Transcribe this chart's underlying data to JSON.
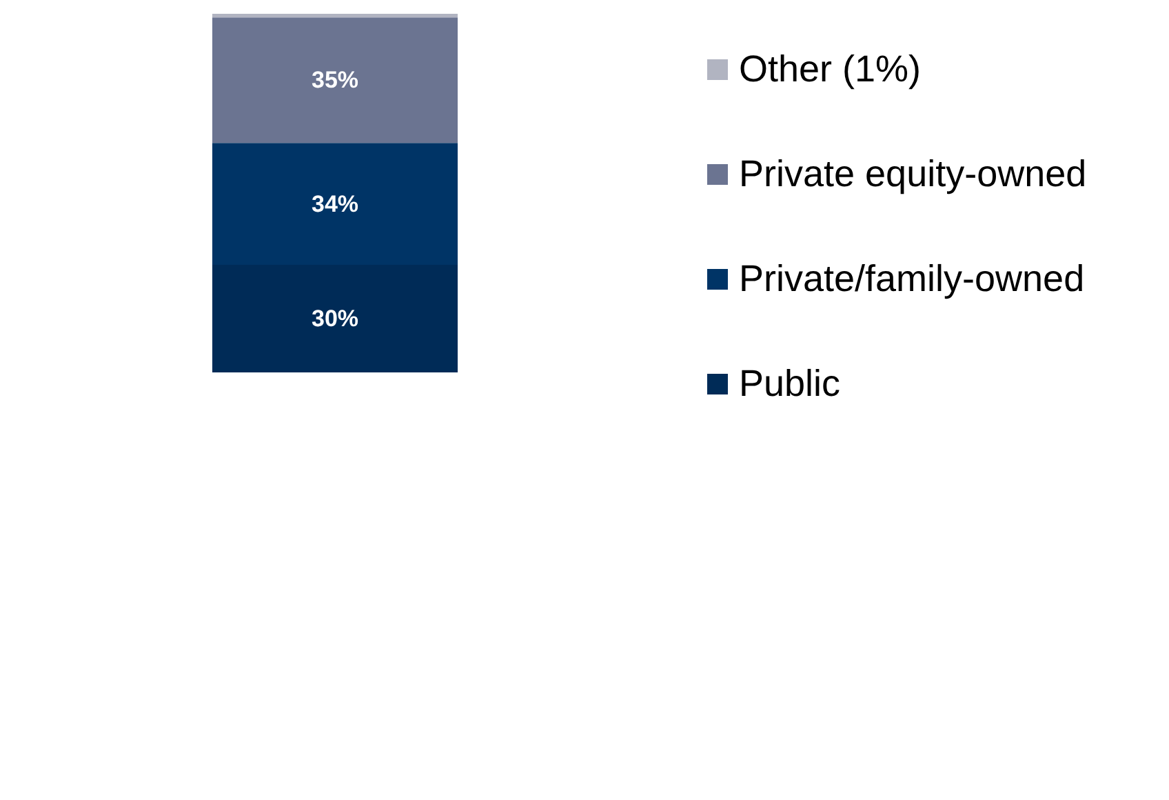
{
  "chart_data": {
    "type": "bar",
    "stacked": true,
    "categories": [
      null
    ],
    "ylim": [
      0,
      100
    ],
    "legend": "right",
    "series": [
      {
        "name": "Public",
        "color": "#002b57",
        "values": [
          30
        ],
        "value_labels": [
          "30%"
        ]
      },
      {
        "name": "Private/family-owned",
        "color": "#003466",
        "values": [
          34
        ],
        "value_labels": [
          "34%"
        ]
      },
      {
        "name": "Private equity-owned",
        "color": "#6b7491",
        "values": [
          35
        ],
        "value_labels": [
          "35%"
        ]
      },
      {
        "name": "Other (1%)",
        "color": "#b1b4c1",
        "values": [
          1
        ],
        "value_labels": [
          null
        ]
      }
    ]
  }
}
